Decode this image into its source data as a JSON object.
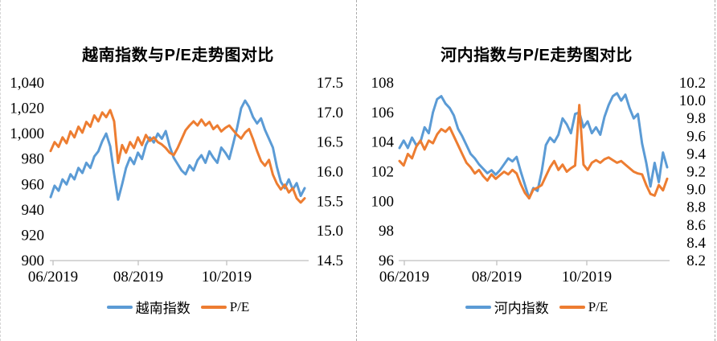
{
  "page": {
    "background": "#ffffff",
    "separator_style": "dashed cell borders"
  },
  "colors": {
    "series_blue": "#5B9BD5",
    "series_orange": "#ED7D31",
    "axis_line": "#BFBFBF",
    "label_text": "#000000"
  },
  "chart_data": [
    {
      "type": "line",
      "title": "越南指数与P/E走势图对比",
      "x_labels": [
        "06/2019",
        "08/2019",
        "10/2019"
      ],
      "grid": false,
      "legend_position": "bottom",
      "left_axis": {
        "min": 900,
        "max": 1040,
        "step": 20,
        "labels": [
          "1,040",
          "1,020",
          "1,000",
          "980",
          "960",
          "940",
          "920",
          "900"
        ]
      },
      "right_axis": {
        "min": 14.5,
        "max": 17.5,
        "step": 0.5,
        "labels": [
          "17.5",
          "17.0",
          "16.5",
          "16.0",
          "15.5",
          "15.0",
          "14.5"
        ]
      },
      "series": [
        {
          "name": "越南指数",
          "axis": "left",
          "color": "#5B9BD5",
          "values": [
            950,
            959,
            955,
            964,
            960,
            968,
            964,
            973,
            969,
            977,
            973,
            982,
            986,
            994,
            1000,
            990,
            968,
            948,
            960,
            973,
            981,
            976,
            985,
            980,
            991,
            997,
            993,
            1000,
            996,
            1002,
            990,
            981,
            976,
            971,
            968,
            975,
            971,
            979,
            983,
            977,
            986,
            981,
            977,
            989,
            985,
            980,
            992,
            1005,
            1020,
            1026,
            1021,
            1013,
            1008,
            1012,
            1003,
            996,
            989,
            974,
            962,
            957,
            964,
            956,
            961,
            951,
            957
          ]
        },
        {
          "name": "P/E",
          "axis": "right",
          "color": "#ED7D31",
          "values": [
            16.35,
            16.5,
            16.42,
            16.58,
            16.48,
            16.68,
            16.58,
            16.76,
            16.66,
            16.84,
            16.76,
            16.95,
            16.85,
            17.0,
            16.92,
            17.04,
            16.85,
            16.15,
            16.45,
            16.32,
            16.5,
            16.4,
            16.58,
            16.45,
            16.62,
            16.52,
            16.58,
            16.5,
            16.46,
            16.4,
            16.32,
            16.28,
            16.4,
            16.55,
            16.7,
            16.78,
            16.85,
            16.78,
            16.88,
            16.78,
            16.84,
            16.72,
            16.78,
            16.68,
            16.74,
            16.78,
            16.7,
            16.62,
            16.56,
            16.66,
            16.72,
            16.55,
            16.35,
            16.18,
            16.1,
            16.2,
            15.95,
            15.8,
            15.7,
            15.78,
            15.65,
            15.72,
            15.55,
            15.48,
            15.55
          ]
        }
      ]
    },
    {
      "type": "line",
      "title": "河内指数与P/E走势图对比",
      "x_labels": [
        "06/2019",
        "08/2019",
        "10/2019"
      ],
      "grid": false,
      "legend_position": "bottom",
      "left_axis": {
        "min": 96,
        "max": 108,
        "step": 2,
        "labels": [
          "108",
          "106",
          "104",
          "102",
          "100",
          "98",
          "96"
        ]
      },
      "right_axis": {
        "min": 8.2,
        "max": 10.2,
        "step": 0.2,
        "labels": [
          "10.2",
          "10.0",
          "9.8",
          "9.6",
          "9.4",
          "9.2",
          "9.0",
          "8.8",
          "8.6",
          "8.4",
          "8.2"
        ]
      },
      "series": [
        {
          "name": "河内指数",
          "axis": "left",
          "color": "#5B9BD5",
          "values": [
            103.6,
            104.1,
            103.6,
            104.3,
            103.8,
            104.0,
            105.0,
            104.6,
            106.0,
            106.9,
            107.1,
            106.6,
            106.3,
            105.8,
            104.9,
            104.4,
            103.8,
            103.2,
            102.9,
            102.5,
            102.2,
            101.9,
            102.1,
            101.8,
            102.1,
            102.5,
            102.9,
            102.7,
            103.0,
            102.0,
            101.1,
            100.2,
            100.9,
            100.7,
            102.0,
            103.8,
            104.3,
            104.0,
            104.5,
            105.6,
            105.2,
            104.6,
            105.9,
            106.0,
            105.0,
            105.4,
            104.6,
            105.0,
            104.5,
            105.7,
            106.5,
            107.1,
            107.3,
            106.8,
            107.2,
            106.3,
            105.6,
            105.9,
            103.9,
            102.6,
            101.0,
            102.6,
            101.3,
            103.3,
            102.3
          ]
        },
        {
          "name": "P/E",
          "axis": "right",
          "color": "#ED7D31",
          "values": [
            9.32,
            9.27,
            9.4,
            9.35,
            9.48,
            9.55,
            9.45,
            9.55,
            9.52,
            9.62,
            9.68,
            9.65,
            9.7,
            9.6,
            9.5,
            9.4,
            9.3,
            9.25,
            9.18,
            9.22,
            9.15,
            9.1,
            9.17,
            9.12,
            9.16,
            9.2,
            9.17,
            9.22,
            9.18,
            9.06,
            8.96,
            8.9,
            9.0,
            9.02,
            9.05,
            9.15,
            9.25,
            9.32,
            9.22,
            9.28,
            9.2,
            9.24,
            9.27,
            9.95,
            9.28,
            9.22,
            9.3,
            9.33,
            9.3,
            9.34,
            9.36,
            9.33,
            9.3,
            9.32,
            9.28,
            9.24,
            9.2,
            9.18,
            9.17,
            9.05,
            8.95,
            8.93,
            9.05,
            8.99,
            9.12
          ]
        }
      ]
    }
  ]
}
